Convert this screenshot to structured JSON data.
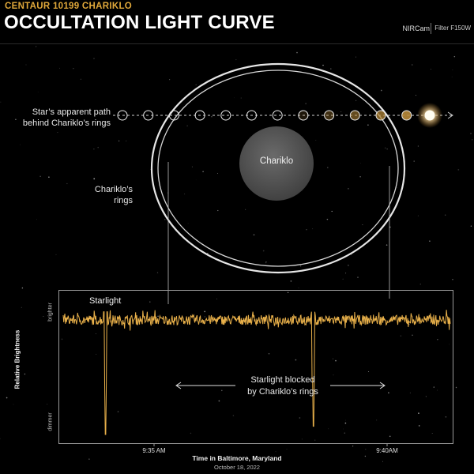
{
  "header": {
    "subtitle": "CENTAUR 10199 CHARIKLO",
    "title": "OCCULTATION LIGHT CURVE",
    "instrument": "NIRCam",
    "filter": "Filter F150W"
  },
  "illustration": {
    "path_label_line1": "Star’s apparent path",
    "path_label_line2": "behind Chariklo’s rings",
    "rings_label_line1": "Chariklo’s",
    "rings_label_line2": "rings",
    "body_label": "Chariklo",
    "star_positions": 13,
    "colors": {
      "ring": "#e6e6e6",
      "body": "#555555",
      "star": "#fff6d8",
      "dot_accent": "#b88a3a"
    }
  },
  "chart_data": {
    "type": "line",
    "title": "",
    "xlabel": "Time in Baltimore, Maryland",
    "xlabel_sub": "October 18, 2022",
    "ylabel": "Relative Brightness",
    "y_top_label": "brighter",
    "y_bottom_label": "dimmer",
    "x_ticks": [
      "9:35 AM",
      "9:40AM"
    ],
    "x_start_minutes_after_934": -0.52,
    "x_end_minutes_after_934": 8.8,
    "series": [
      {
        "name": "Starlight",
        "baseline": 1.0,
        "noise": 0.012,
        "dips": [
          {
            "time": "9:35 AM",
            "depth_to": 0.72
          },
          {
            "time": "9:40AM",
            "depth_to": 0.74
          }
        ],
        "color": "#e8b04a"
      }
    ],
    "annotations": {
      "starlight": "Starlight",
      "blocked_line1": "Starlight blocked",
      "blocked_line2": "by Chariklo’s rings"
    }
  }
}
